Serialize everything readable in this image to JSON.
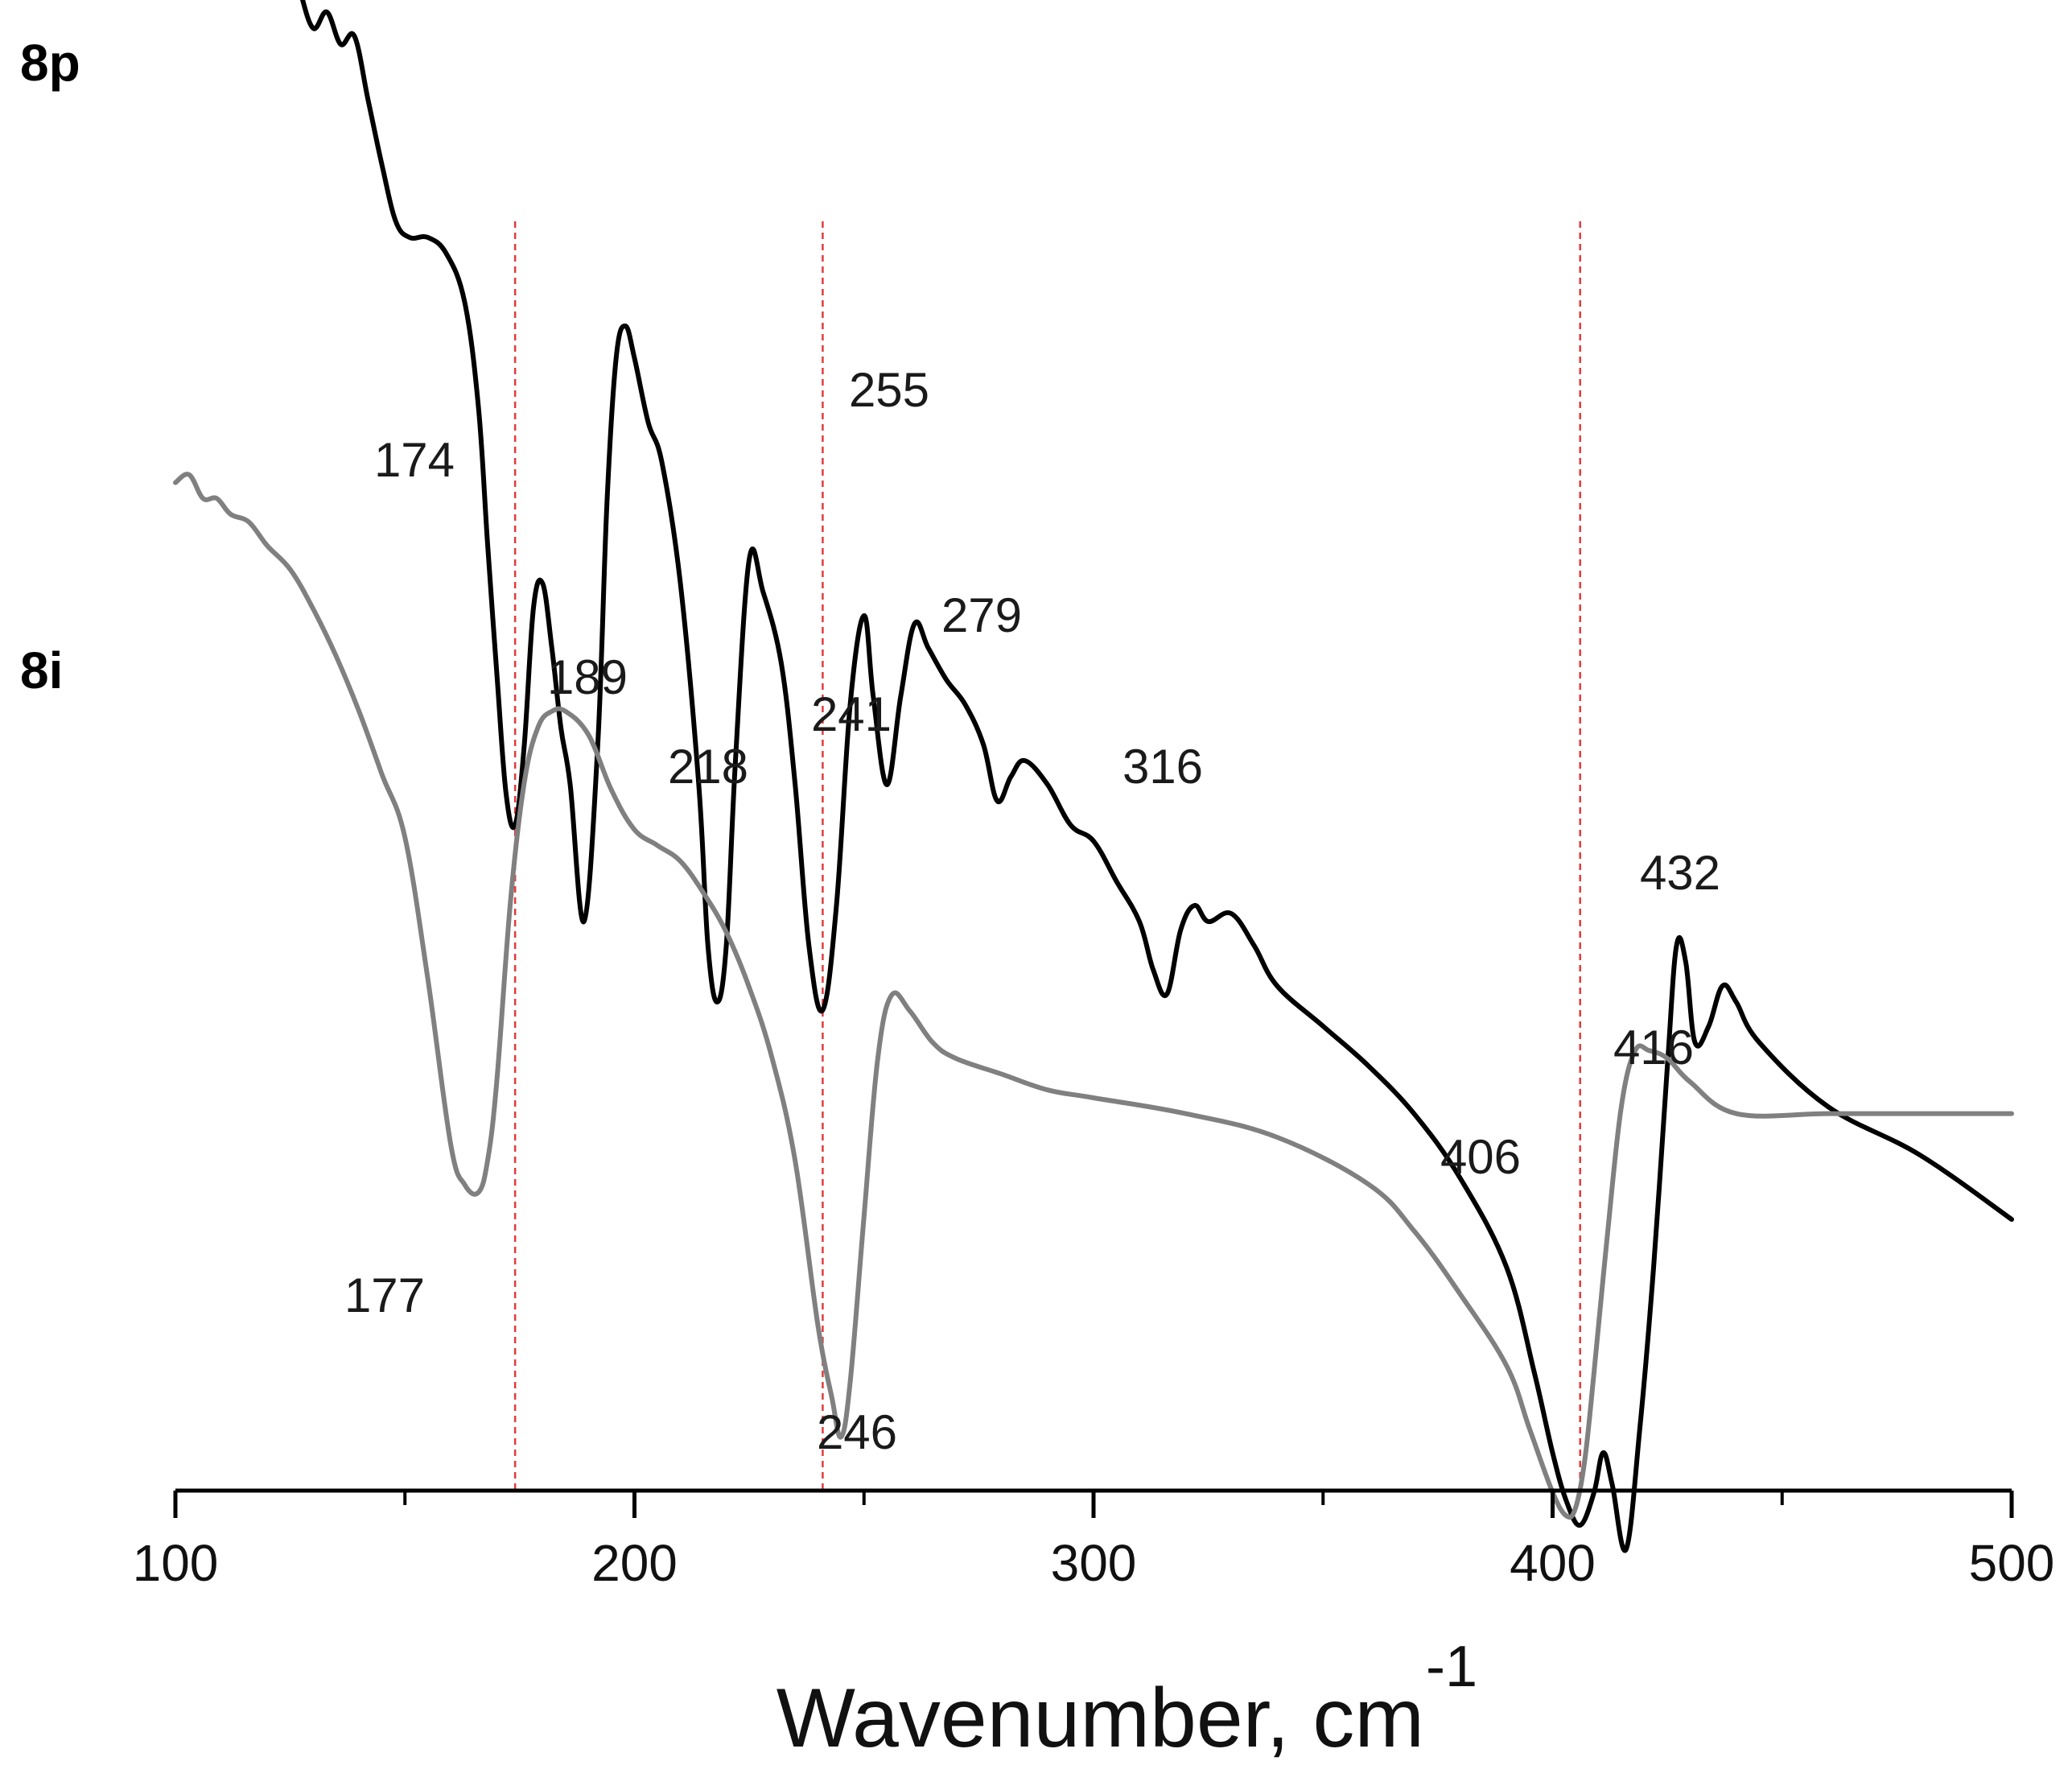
{
  "chart_data": {
    "type": "line",
    "title": "",
    "xlabel": "Wavenumber, cm",
    "xlabel_superscript": "-1",
    "ylabel": "",
    "xlim": [
      100,
      500
    ],
    "x_ticks": [
      "100",
      "200",
      "300",
      "400",
      "500"
    ],
    "x_major_ticks": [
      100,
      200,
      300,
      400,
      500
    ],
    "x_minor_ticks": [
      150,
      250,
      350,
      450
    ],
    "grid": false,
    "reference_lines": [
      174,
      241,
      406
    ],
    "colors": {
      "reference": "#e23b3b",
      "axis": "#000000"
    },
    "series": [
      {
        "name": "8p",
        "color": "#000000",
        "x": [
          115,
          118,
          121,
          124,
          127,
          130,
          133,
          136,
          139,
          142,
          145,
          148,
          151,
          155,
          159,
          163,
          166,
          168,
          170,
          172,
          174,
          176,
          178,
          180,
          182,
          184,
          186,
          189,
          192,
          194,
          196,
          198,
          200,
          203,
          206,
          210,
          214,
          216,
          218,
          220,
          222,
          225,
          228,
          232,
          235,
          238,
          241,
          244,
          247,
          250,
          252,
          255,
          258,
          261,
          264,
          268,
          272,
          276,
          279,
          282,
          285,
          290,
          295,
          300,
          305,
          310,
          313,
          316,
          319,
          322,
          325,
          330,
          335,
          340,
          350,
          360,
          370,
          380,
          390,
          396,
          400,
          403,
          406,
          409,
          411,
          413,
          416,
          419,
          422,
          425,
          427,
          429,
          431,
          434,
          437,
          440,
          445,
          460,
          480,
          500
        ],
        "values": [
          15.3,
          14.5,
          13.9,
          14.1,
          13.4,
          12.9,
          13.1,
          12.7,
          12.8,
          12.0,
          11.2,
          10.5,
          10.3,
          10.3,
          10.1,
          9.5,
          8.2,
          6.5,
          4.9,
          3.4,
          3.0,
          4.0,
          5.7,
          6.0,
          5.2,
          4.2,
          3.5,
          1.8,
          4.0,
          7.0,
          8.8,
          9.2,
          8.8,
          8.0,
          7.5,
          6.0,
          3.5,
          1.5,
          0.8,
          1.5,
          3.8,
          6.3,
          5.9,
          5.0,
          3.5,
          1.5,
          0.7,
          2.0,
          4.5,
          5.6,
          4.6,
          3.5,
          4.6,
          5.5,
          5.2,
          4.8,
          4.5,
          4.0,
          3.3,
          3.6,
          3.8,
          3.5,
          3.0,
          2.8,
          2.3,
          1.8,
          1.2,
          0.9,
          1.7,
          2.0,
          1.8,
          1.9,
          1.5,
          1.0,
          0.5,
          0.0,
          -0.6,
          -1.4,
          -2.5,
          -3.8,
          -4.8,
          -5.4,
          -5.7,
          -5.3,
          -4.8,
          -5.2,
          -6.0,
          -4.5,
          -2.5,
          0.0,
          1.5,
          1.3,
          0.3,
          0.5,
          1.0,
          0.8,
          0.3,
          -0.5,
          -1.1,
          -1.9
        ]
      },
      {
        "name": "8i",
        "color": "#808080",
        "x": [
          100,
          103,
          106,
          109,
          112,
          116,
          120,
          125,
          130,
          135,
          140,
          145,
          150,
          155,
          160,
          163,
          166,
          168,
          170,
          173,
          176,
          179,
          182,
          185,
          190,
          195,
          200,
          205,
          210,
          215,
          220,
          225,
          230,
          235,
          240,
          243,
          245,
          247,
          250,
          253,
          256,
          260,
          265,
          270,
          280,
          290,
          300,
          320,
          340,
          360,
          370,
          380,
          390,
          395,
          400,
          403,
          405,
          407,
          409,
          412,
          415,
          418,
          421,
          425,
          430,
          440,
          460,
          480,
          500
        ],
        "values": [
          9.8,
          9.9,
          9.6,
          9.6,
          9.4,
          9.3,
          9.0,
          8.7,
          8.2,
          7.6,
          6.9,
          6.1,
          5.3,
          3.5,
          1.4,
          0.9,
          0.8,
          1.2,
          2.2,
          4.5,
          6.0,
          6.7,
          6.9,
          6.9,
          6.6,
          5.9,
          5.4,
          5.2,
          5.0,
          4.6,
          4.1,
          3.4,
          2.5,
          1.2,
          -0.9,
          -1.8,
          -2.3,
          -1.6,
          0.5,
          2.5,
          3.3,
          3.1,
          2.7,
          2.5,
          2.3,
          2.1,
          2.0,
          1.8,
          1.5,
          0.9,
          0.3,
          -0.5,
          -1.4,
          -2.2,
          -3.0,
          -3.3,
          -3.2,
          -2.6,
          -1.5,
          0.3,
          1.9,
          2.6,
          2.6,
          2.5,
          2.2,
          1.8,
          1.8,
          1.8,
          1.8
        ]
      }
    ],
    "series_labels": [
      "8p",
      "8i"
    ],
    "peak_labels": [
      {
        "text": "174",
        "series": "8p",
        "x": 174
      },
      {
        "text": "189",
        "series": "8p",
        "x": 189
      },
      {
        "text": "218",
        "series": "8p",
        "x": 218
      },
      {
        "text": "241",
        "series": "8p",
        "x": 241
      },
      {
        "text": "255",
        "series": "8p",
        "x": 255
      },
      {
        "text": "279",
        "series": "8p",
        "x": 279
      },
      {
        "text": "316",
        "series": "8p",
        "x": 316
      },
      {
        "text": "406",
        "series": "8p",
        "x": 406
      },
      {
        "text": "416",
        "series": "8p",
        "x": 416
      },
      {
        "text": "432",
        "series": "8p",
        "x": 432
      },
      {
        "text": "177",
        "series": "8i",
        "x": 177
      },
      {
        "text": "246",
        "series": "8i",
        "x": 246
      }
    ]
  }
}
